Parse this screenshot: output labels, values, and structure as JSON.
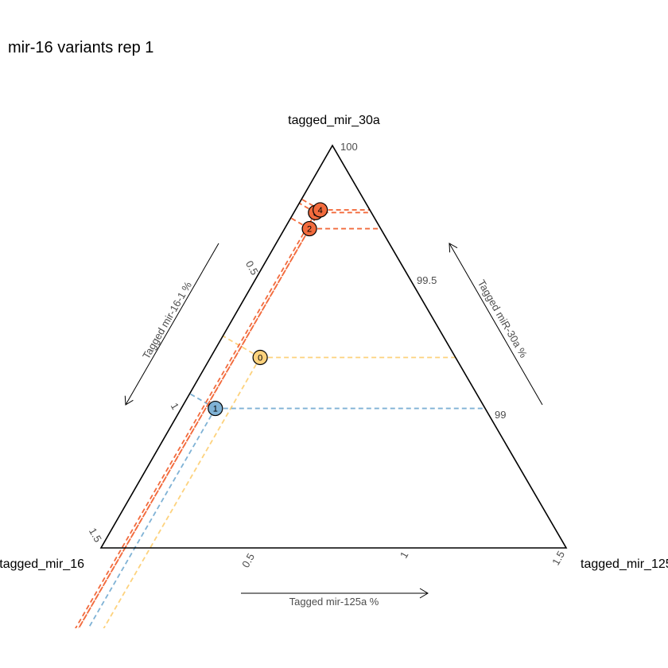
{
  "chart_data": {
    "type": "scatter",
    "subtype": "ternary",
    "title": "mir-16 variants rep 1",
    "vertices": {
      "top": "tagged_mir_30a",
      "left": "tagged_mir_16",
      "right": "tagged_mir_125a"
    },
    "axes": {
      "left": {
        "label": "Tagged mir-16-1 %",
        "range": [
          0,
          1.5
        ],
        "ticks": [
          "0.5",
          "1",
          "1.5"
        ]
      },
      "right": {
        "label": "Tagged miR-30a %",
        "range": [
          98.5,
          100
        ],
        "ticks": [
          "99",
          "99.5",
          "100"
        ]
      },
      "bottom": {
        "label": "Tagged mir-125a %",
        "range": [
          0,
          1.5
        ],
        "ticks": [
          "0.5",
          "1",
          "1.5"
        ]
      }
    },
    "points": [
      {
        "label": "0",
        "mir_16": 0.63,
        "mir_125a": 0.16,
        "mir_30a": 99.21,
        "color": "#fdd27d"
      },
      {
        "label": "1",
        "mir_16": 0.87,
        "mir_125a": 0.11,
        "mir_30a": 99.02,
        "color": "#7fb2d5"
      },
      {
        "label": "2",
        "mir_16": 0.23,
        "mir_125a": 0.08,
        "mir_30a": 99.69,
        "color": "#f26b3d"
      },
      {
        "label": "3",
        "mir_16": 0.18,
        "mir_125a": 0.07,
        "mir_30a": 99.75,
        "color": "#f26b3d"
      },
      {
        "label": "4",
        "mir_16": 0.16,
        "mir_125a": 0.08,
        "mir_30a": 99.76,
        "color": "#f26b3d"
      }
    ]
  }
}
